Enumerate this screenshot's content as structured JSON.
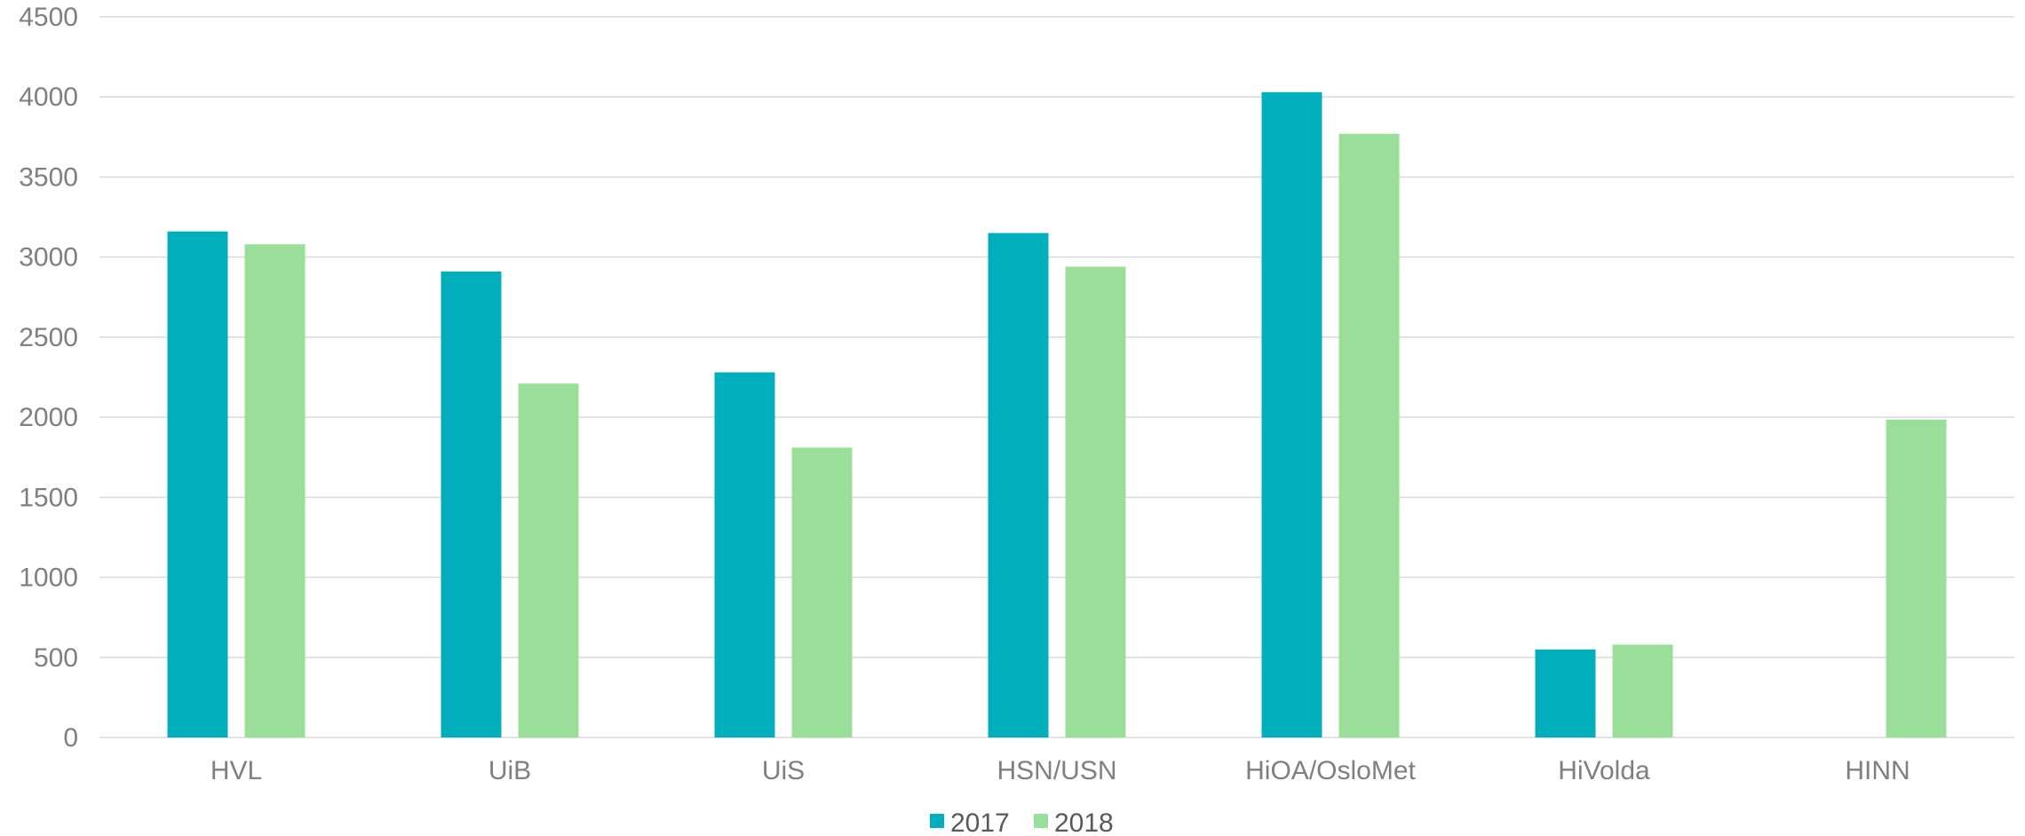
{
  "chart_data": {
    "type": "bar",
    "title": "",
    "xlabel": "",
    "ylabel": "",
    "categories": [
      "HVL",
      "UiB",
      "UiS",
      "HSN/USN",
      "HiOA/OsloMet",
      "HiVolda",
      "HINN"
    ],
    "series": [
      {
        "name": "2017",
        "color": "#00AFBB",
        "values": [
          3160,
          2910,
          2280,
          3150,
          4030,
          550,
          null
        ]
      },
      {
        "name": "2018",
        "color": "#99DF9A",
        "values": [
          3080,
          2210,
          1810,
          2940,
          3770,
          580,
          1985
        ]
      }
    ],
    "ylim": [
      0,
      4500
    ],
    "yticks": [
      0,
      500,
      1000,
      1500,
      2000,
      2500,
      3000,
      3500,
      4000,
      4500
    ],
    "grid": true,
    "gridline_color": "#d9d9d9",
    "legend_position": "bottom"
  }
}
